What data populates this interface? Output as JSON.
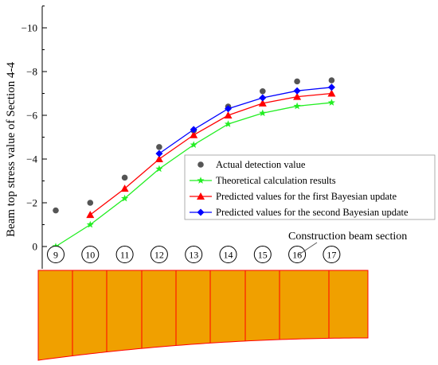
{
  "chart_data": {
    "type": "line",
    "ylabel": "Beam top stress value of Section 4-4",
    "ylim": [
      0,
      -11
    ],
    "y_ticks": [
      0,
      -2,
      -4,
      -6,
      -8,
      -10
    ],
    "y_tick_labels": [
      "0",
      "−2",
      "−4",
      "−6",
      "−8",
      "−10"
    ],
    "x": [
      9,
      10,
      11,
      12,
      13,
      14,
      15,
      16,
      17
    ],
    "x_tick_labels": [
      "9",
      "10",
      "11",
      "12",
      "13",
      "14",
      "15",
      "16",
      "17"
    ],
    "series": [
      {
        "name": "Actual detection value",
        "style": "scatter",
        "color": "#555555",
        "marker": "circle",
        "values": [
          -1.65,
          -2.0,
          -3.15,
          -4.55,
          -5.3,
          -6.4,
          -7.1,
          -7.55,
          -7.6
        ]
      },
      {
        "name": "Theoretical calculation results",
        "style": "line",
        "color": "#22ee22",
        "marker": "star",
        "values": [
          0.0,
          -1.0,
          -2.2,
          -3.55,
          -4.65,
          -5.6,
          -6.1,
          -6.42,
          -6.58
        ]
      },
      {
        "name": "Predicted values for the first Bayesian update",
        "style": "line",
        "color": "#ff0000",
        "marker": "triangle",
        "values": [
          null,
          -1.45,
          -2.65,
          -4.0,
          -5.1,
          -6.0,
          -6.55,
          -6.85,
          -7.0
        ]
      },
      {
        "name": "Predicted values for the second Bayesian update",
        "style": "line",
        "color": "#0000ff",
        "marker": "diamond",
        "values": [
          null,
          null,
          null,
          -4.25,
          -5.35,
          -6.3,
          -6.8,
          -7.12,
          -7.28
        ]
      }
    ],
    "legend_position": "right",
    "annotation": "Construction beam section",
    "beam_color": "#f0a000",
    "beam_line_color": "#ff0000"
  }
}
